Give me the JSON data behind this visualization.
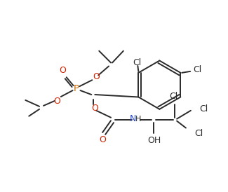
{
  "background_color": "#ffffff",
  "line_color": "#2a2a2a",
  "atom_colors": {
    "P": "#cc6600",
    "O": "#cc2200",
    "N": "#2244cc",
    "Cl": "#2a2a2a",
    "C": "#2a2a2a",
    "H": "#2a2a2a"
  },
  "figsize": [
    3.25,
    2.74
  ],
  "dpi": 100
}
